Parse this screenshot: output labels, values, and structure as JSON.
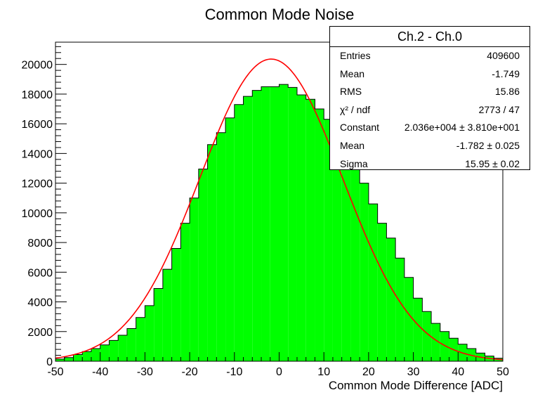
{
  "chart_data": {
    "type": "bar",
    "title": "Common Mode Noise",
    "xlabel": "Common Mode Difference [ADC]",
    "ylabel": "",
    "xlim": [
      -50,
      50
    ],
    "ylim": [
      0,
      21500
    ],
    "bin_width": 2,
    "x_ticks": [
      -50,
      -40,
      -30,
      -20,
      -10,
      0,
      10,
      20,
      30,
      40,
      50
    ],
    "y_ticks": [
      0,
      2000,
      4000,
      6000,
      8000,
      10000,
      12000,
      14000,
      16000,
      18000,
      20000
    ],
    "grid": false,
    "bin_edges": [
      -50,
      -48,
      -46,
      -44,
      -42,
      -40,
      -38,
      -36,
      -34,
      -32,
      -30,
      -28,
      -26,
      -24,
      -22,
      -20,
      -18,
      -16,
      -14,
      -12,
      -10,
      -8,
      -6,
      -4,
      -2,
      0,
      2,
      4,
      6,
      8,
      10,
      12,
      14,
      16,
      18,
      20,
      22,
      24,
      26,
      28,
      30,
      32,
      34,
      36,
      38,
      40,
      42,
      44,
      46,
      48,
      50
    ],
    "series": [
      {
        "name": "Ch.2 - Ch.0",
        "color": "#00ff00",
        "values": [
          150,
          250,
          450,
          650,
          850,
          1100,
          1400,
          1750,
          2200,
          2950,
          3750,
          4900,
          6200,
          7600,
          9300,
          11000,
          12950,
          14600,
          15400,
          16400,
          17300,
          17850,
          18250,
          18500,
          18500,
          18650,
          18450,
          17950,
          17650,
          17000,
          16300,
          15500,
          14500,
          13700,
          12000,
          10600,
          9300,
          8300,
          6950,
          5650,
          4250,
          3350,
          2550,
          2000,
          1550,
          1150,
          850,
          550,
          350,
          200
        ]
      }
    ],
    "fit": {
      "type": "gaussian",
      "color": "#ff0000",
      "constant": 20360,
      "mean": -1.782,
      "sigma": 15.95
    },
    "legend_position": "top-right",
    "stats_box": {
      "title": "Ch.2 - Ch.0",
      "rows": [
        {
          "key": "Entries",
          "value": "409600"
        },
        {
          "key": "Mean",
          "value": "-1.749"
        },
        {
          "key": "RMS",
          "value": "15.86"
        },
        {
          "key": "χ² / ndf",
          "value": "2773 / 47"
        },
        {
          "key": "Constant",
          "value": "2.036e+004 ± 3.810e+001"
        },
        {
          "key": "Mean",
          "value": "-1.782 ± 0.025"
        },
        {
          "key": "Sigma",
          "value": "15.95 ± 0.02"
        }
      ]
    }
  }
}
